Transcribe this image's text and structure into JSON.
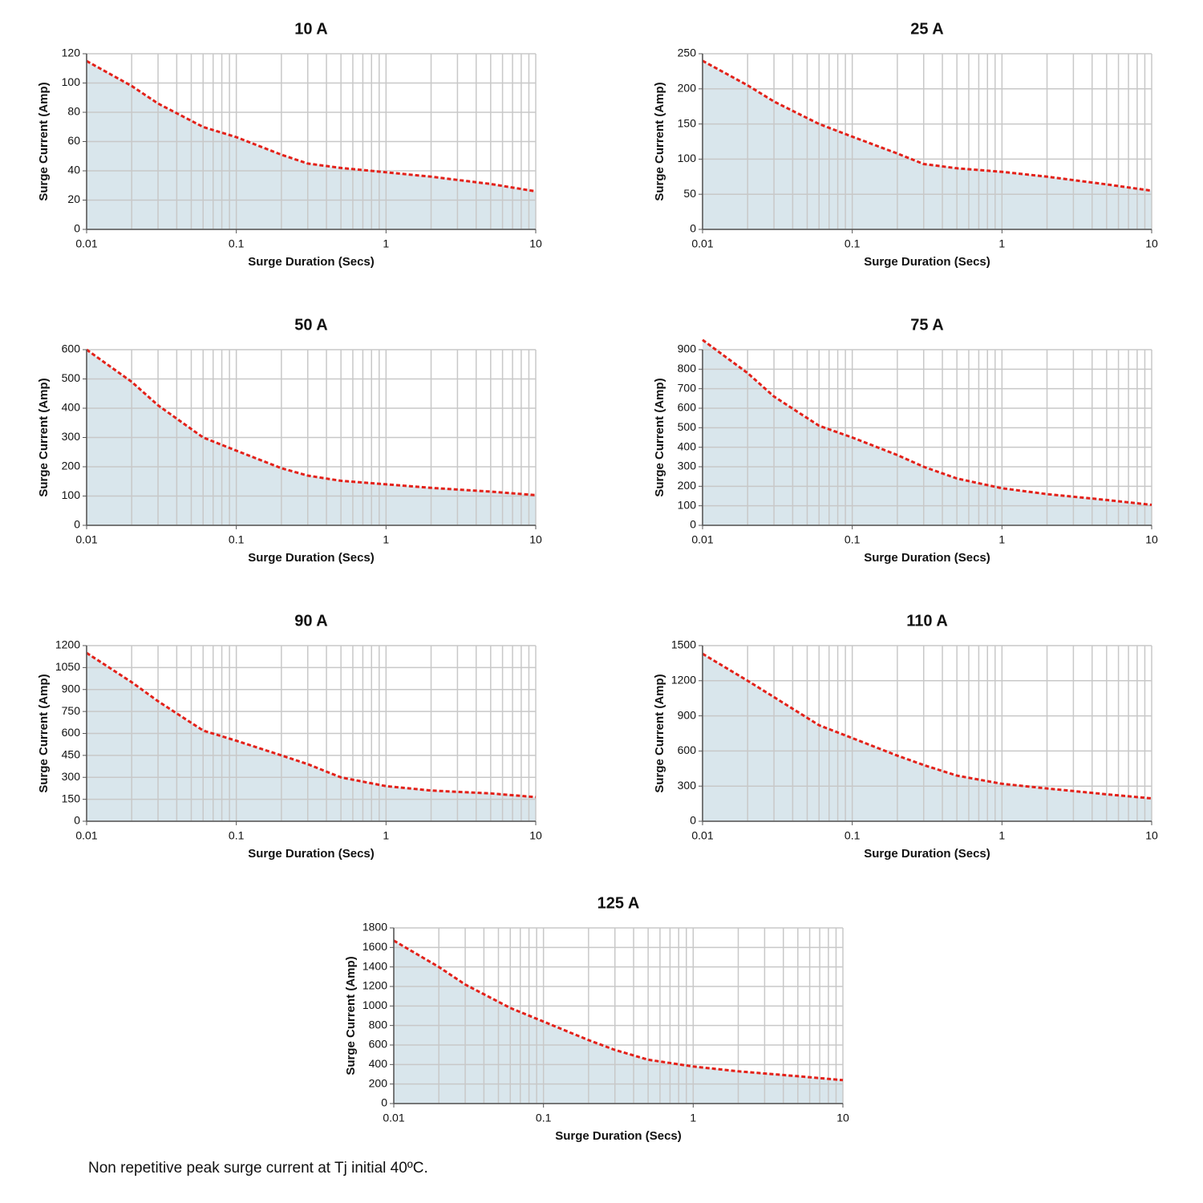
{
  "chart_data": [
    {
      "type": "area",
      "title": "10 A",
      "xlabel": "Surge Duration (Secs)",
      "ylabel": "Surge Current (Amp)",
      "x": [
        0.01,
        0.02,
        0.03,
        0.06,
        0.1,
        0.2,
        0.3,
        0.5,
        1,
        2,
        5,
        10
      ],
      "values": [
        115,
        98,
        86,
        70,
        63,
        51,
        45,
        42,
        39,
        36,
        31,
        26
      ],
      "color": "#e32119",
      "fill": "#d9e6ec",
      "xscale": "log",
      "grid": true,
      "xlim": [
        0.01,
        10
      ],
      "xticks": [
        0.01,
        0.1,
        1,
        10
      ],
      "ylim": [
        0,
        120
      ],
      "yticks": [
        0,
        20,
        40,
        60,
        80,
        100,
        120
      ]
    },
    {
      "type": "area",
      "title": "25 A",
      "xlabel": "Surge Duration (Secs)",
      "ylabel": "Surge Current (Amp)",
      "x": [
        0.01,
        0.02,
        0.03,
        0.06,
        0.1,
        0.2,
        0.3,
        0.5,
        1,
        2,
        5,
        10
      ],
      "values": [
        240,
        205,
        182,
        150,
        132,
        108,
        93,
        87,
        82,
        75,
        64,
        55
      ],
      "color": "#e32119",
      "fill": "#d9e6ec",
      "xscale": "log",
      "grid": true,
      "xlim": [
        0.01,
        10
      ],
      "xticks": [
        0.01,
        0.1,
        1,
        10
      ],
      "ylim": [
        0,
        250
      ],
      "yticks": [
        0,
        50,
        100,
        150,
        200,
        250
      ]
    },
    {
      "type": "area",
      "title": "50 A",
      "xlabel": "Surge Duration (Secs)",
      "ylabel": "Surge Current (Amp)",
      "x": [
        0.01,
        0.02,
        0.03,
        0.06,
        0.1,
        0.2,
        0.3,
        0.5,
        1,
        2,
        5,
        10
      ],
      "values": [
        600,
        490,
        410,
        300,
        255,
        195,
        170,
        152,
        140,
        128,
        115,
        103
      ],
      "color": "#e32119",
      "fill": "#d9e6ec",
      "xscale": "log",
      "grid": true,
      "xlim": [
        0.01,
        10
      ],
      "xticks": [
        0.01,
        0.1,
        1,
        10
      ],
      "ylim": [
        0,
        600
      ],
      "yticks": [
        0,
        100,
        200,
        300,
        400,
        500,
        600
      ]
    },
    {
      "type": "area",
      "title": "75 A",
      "xlabel": "Surge Duration (Secs)",
      "ylabel": "Surge Current (Amp)",
      "x": [
        0.01,
        0.02,
        0.03,
        0.06,
        0.1,
        0.2,
        0.3,
        0.5,
        1,
        2,
        5,
        10
      ],
      "values": [
        950,
        780,
        660,
        510,
        450,
        360,
        300,
        240,
        190,
        160,
        130,
        105
      ],
      "color": "#e32119",
      "fill": "#d9e6ec",
      "xscale": "log",
      "grid": true,
      "xlim": [
        0.01,
        10
      ],
      "xticks": [
        0.01,
        0.1,
        1,
        10
      ],
      "ylim": [
        0,
        900
      ],
      "yticks": [
        0,
        100,
        200,
        300,
        400,
        500,
        600,
        700,
        800,
        900
      ]
    },
    {
      "type": "area",
      "title": "90 A",
      "xlabel": "Surge Duration (Secs)",
      "ylabel": "Surge Current (Amp)",
      "x": [
        0.01,
        0.02,
        0.03,
        0.06,
        0.1,
        0.2,
        0.3,
        0.5,
        1,
        2,
        5,
        10
      ],
      "values": [
        1150,
        950,
        820,
        620,
        550,
        450,
        390,
        300,
        240,
        210,
        190,
        165
      ],
      "color": "#e32119",
      "fill": "#d9e6ec",
      "xscale": "log",
      "grid": true,
      "xlim": [
        0.01,
        10
      ],
      "xticks": [
        0.01,
        0.1,
        1,
        10
      ],
      "ylim": [
        0,
        1200
      ],
      "yticks": [
        0,
        150,
        300,
        450,
        600,
        750,
        900,
        1050,
        1200
      ]
    },
    {
      "type": "area",
      "title": "110 A",
      "xlabel": "Surge Duration (Secs)",
      "ylabel": "Surge Current (Amp)",
      "x": [
        0.01,
        0.02,
        0.03,
        0.06,
        0.1,
        0.2,
        0.3,
        0.5,
        1,
        2,
        5,
        10
      ],
      "values": [
        1430,
        1200,
        1060,
        820,
        710,
        560,
        480,
        390,
        320,
        280,
        230,
        195
      ],
      "color": "#e32119",
      "fill": "#d9e6ec",
      "xscale": "log",
      "grid": true,
      "xlim": [
        0.01,
        10
      ],
      "xticks": [
        0.01,
        0.1,
        1,
        10
      ],
      "ylim": [
        0,
        1500
      ],
      "yticks": [
        0,
        300,
        600,
        900,
        1200,
        1500
      ]
    },
    {
      "type": "area",
      "title": "125 A",
      "xlabel": "Surge Duration (Secs)",
      "ylabel": "Surge Current (Amp)",
      "x": [
        0.01,
        0.02,
        0.03,
        0.06,
        0.1,
        0.2,
        0.3,
        0.5,
        1,
        2,
        5,
        10
      ],
      "values": [
        1670,
        1400,
        1220,
        980,
        840,
        650,
        550,
        450,
        380,
        330,
        280,
        240
      ],
      "color": "#e32119",
      "fill": "#d9e6ec",
      "xscale": "log",
      "grid": true,
      "xlim": [
        0.01,
        10
      ],
      "xticks": [
        0.01,
        0.1,
        1,
        10
      ],
      "ylim": [
        0,
        1800
      ],
      "yticks": [
        0,
        200,
        400,
        600,
        800,
        1000,
        1200,
        1400,
        1600,
        1800
      ]
    }
  ],
  "note": "Non repetitive peak surge current at Tj initial 40ºC."
}
